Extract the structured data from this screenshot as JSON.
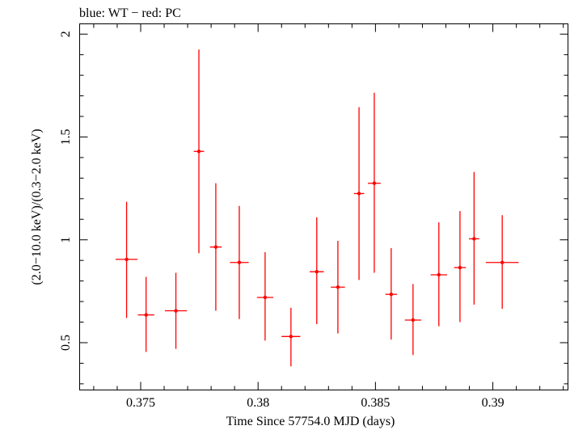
{
  "chart_data": {
    "type": "scatter",
    "title": "blue: WT − red: PC",
    "xlabel": "Time Since 57754.0 MJD (days)",
    "ylabel": "(2.0−10.0 keV)/(0.3−2.0 keV)",
    "xlim": [
      0.3724,
      0.3932
    ],
    "ylim": [
      0.27,
      2.05
    ],
    "xticks": [
      {
        "v": 0.375,
        "t": "0.375"
      },
      {
        "v": 0.38,
        "t": "0.38"
      },
      {
        "v": 0.385,
        "t": "0.385"
      },
      {
        "v": 0.39,
        "t": "0.39"
      }
    ],
    "yticks": [
      {
        "v": 0.5,
        "t": "0.5"
      },
      {
        "v": 1.0,
        "t": "1"
      },
      {
        "v": 1.5,
        "t": "1.5"
      },
      {
        "v": 2.0,
        "t": "2"
      }
    ],
    "xminor_step": 0.001,
    "yminor_step": 0.1,
    "series": [
      {
        "color": "#ff0000",
        "points": [
          {
            "x": 0.3744,
            "xerr": 0.00047,
            "y": 0.905,
            "ylo": 0.62,
            "yhi": 1.185
          },
          {
            "x": 0.37523,
            "xerr": 0.00035,
            "y": 0.635,
            "ylo": 0.455,
            "yhi": 0.82
          },
          {
            "x": 0.3765,
            "xerr": 0.00047,
            "y": 0.655,
            "ylo": 0.47,
            "yhi": 0.84
          },
          {
            "x": 0.37748,
            "xerr": 0.00022,
            "y": 1.43,
            "ylo": 0.935,
            "yhi": 1.925
          },
          {
            "x": 0.3782,
            "xerr": 0.00025,
            "y": 0.965,
            "ylo": 0.655,
            "yhi": 1.275
          },
          {
            "x": 0.3792,
            "xerr": 0.0004,
            "y": 0.89,
            "ylo": 0.615,
            "yhi": 1.165
          },
          {
            "x": 0.3803,
            "xerr": 0.00035,
            "y": 0.72,
            "ylo": 0.51,
            "yhi": 0.94
          },
          {
            "x": 0.3814,
            "xerr": 0.0004,
            "y": 0.53,
            "ylo": 0.385,
            "yhi": 0.67
          },
          {
            "x": 0.3825,
            "xerr": 0.0003,
            "y": 0.845,
            "ylo": 0.59,
            "yhi": 1.11
          },
          {
            "x": 0.3834,
            "xerr": 0.0003,
            "y": 0.77,
            "ylo": 0.545,
            "yhi": 0.995
          },
          {
            "x": 0.3843,
            "xerr": 0.00022,
            "y": 1.225,
            "ylo": 0.805,
            "yhi": 1.645
          },
          {
            "x": 0.38495,
            "xerr": 0.00027,
            "y": 1.275,
            "ylo": 0.84,
            "yhi": 1.715
          },
          {
            "x": 0.38567,
            "xerr": 0.00025,
            "y": 0.735,
            "ylo": 0.515,
            "yhi": 0.96
          },
          {
            "x": 0.3866,
            "xerr": 0.00035,
            "y": 0.61,
            "ylo": 0.44,
            "yhi": 0.785
          },
          {
            "x": 0.3877,
            "xerr": 0.00035,
            "y": 0.83,
            "ylo": 0.58,
            "yhi": 1.085
          },
          {
            "x": 0.3886,
            "xerr": 0.00025,
            "y": 0.865,
            "ylo": 0.6,
            "yhi": 1.14
          },
          {
            "x": 0.3892,
            "xerr": 0.00022,
            "y": 1.005,
            "ylo": 0.685,
            "yhi": 1.33
          },
          {
            "x": 0.3904,
            "xerr": 0.0007,
            "y": 0.89,
            "ylo": 0.665,
            "yhi": 1.12
          }
        ]
      }
    ]
  }
}
